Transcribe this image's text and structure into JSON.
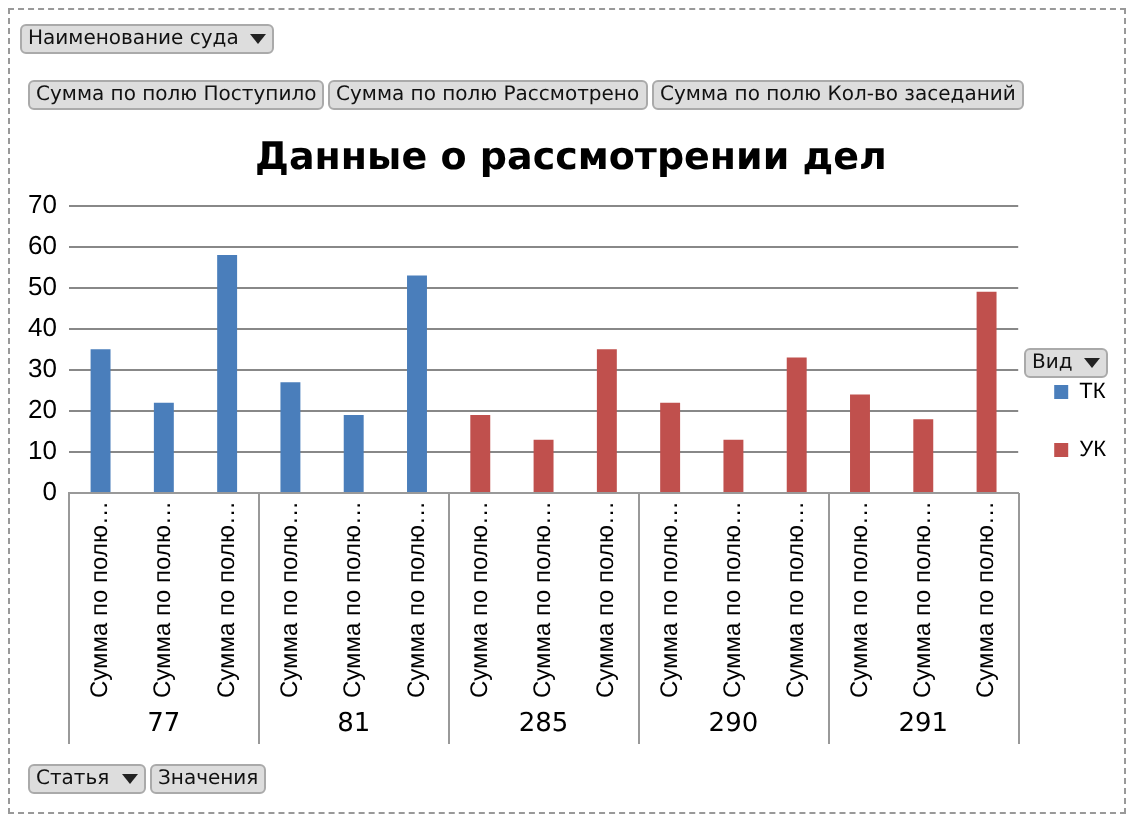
{
  "chart_data": {
    "type": "bar",
    "title": "Данные о рассмотрении дел",
    "categories": [
      "Сумма по полю…",
      "Сумма по полю…",
      "Сумма по полю…",
      "Сумма по полю…",
      "Сумма по полю…",
      "Сумма по полю…",
      "Сумма по полю…",
      "Сумма по полю…",
      "Сумма по полю…",
      "Сумма по полю…",
      "Сумма по полю…",
      "Сумма по полю…",
      "Сумма по полю…",
      "Сумма по полю…",
      "Сумма по полю…"
    ],
    "series": [
      {
        "name": "ТК",
        "color": "#4a7ebb",
        "values": [
          35,
          22,
          58,
          27,
          19,
          53,
          null,
          null,
          null,
          null,
          null,
          null,
          null,
          null,
          null
        ]
      },
      {
        "name": "УК",
        "color": "#c0504d",
        "values": [
          null,
          null,
          null,
          null,
          null,
          null,
          19,
          13,
          35,
          22,
          13,
          33,
          24,
          18,
          49
        ]
      }
    ],
    "ylim": [
      0,
      70
    ],
    "yticks": [
      0,
      10,
      20,
      30,
      40,
      50,
      60,
      70
    ],
    "grid": "y",
    "legend": "right",
    "legend_title": "Вид",
    "annotations": [
      "Наименование суда",
      "Сумма по полю Поступило",
      "Сумма по полю Рассмотрено",
      "Сумма по полю Кол-во заседаний",
      "Статья",
      "Значения",
      {
        "text": "77"
      },
      {
        "text": "81"
      },
      {
        "text": "285"
      },
      {
        "text": "290"
      },
      {
        "text": "291"
      }
    ]
  }
}
